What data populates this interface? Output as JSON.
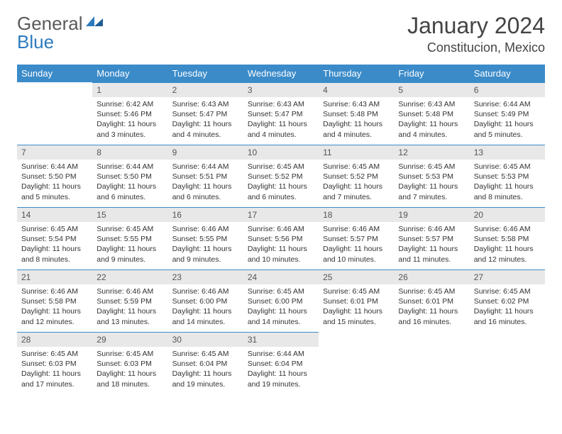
{
  "brand": {
    "g": "General",
    "b": "Blue"
  },
  "title": "January 2024",
  "location": "Constitucion, Mexico",
  "colors": {
    "header_bg": "#3b8bc9",
    "daynum_bg": "#e8e8e8",
    "rule": "#3b8bc9",
    "brand_gray": "#5a5a5a",
    "brand_blue": "#2d7bbf"
  },
  "day_headers": [
    "Sunday",
    "Monday",
    "Tuesday",
    "Wednesday",
    "Thursday",
    "Friday",
    "Saturday"
  ],
  "weeks": [
    [
      null,
      {
        "n": "1",
        "sr": "Sunrise: 6:42 AM",
        "ss": "Sunset: 5:46 PM",
        "d1": "Daylight: 11 hours",
        "d2": "and 3 minutes."
      },
      {
        "n": "2",
        "sr": "Sunrise: 6:43 AM",
        "ss": "Sunset: 5:47 PM",
        "d1": "Daylight: 11 hours",
        "d2": "and 4 minutes."
      },
      {
        "n": "3",
        "sr": "Sunrise: 6:43 AM",
        "ss": "Sunset: 5:47 PM",
        "d1": "Daylight: 11 hours",
        "d2": "and 4 minutes."
      },
      {
        "n": "4",
        "sr": "Sunrise: 6:43 AM",
        "ss": "Sunset: 5:48 PM",
        "d1": "Daylight: 11 hours",
        "d2": "and 4 minutes."
      },
      {
        "n": "5",
        "sr": "Sunrise: 6:43 AM",
        "ss": "Sunset: 5:48 PM",
        "d1": "Daylight: 11 hours",
        "d2": "and 4 minutes."
      },
      {
        "n": "6",
        "sr": "Sunrise: 6:44 AM",
        "ss": "Sunset: 5:49 PM",
        "d1": "Daylight: 11 hours",
        "d2": "and 5 minutes."
      }
    ],
    [
      {
        "n": "7",
        "sr": "Sunrise: 6:44 AM",
        "ss": "Sunset: 5:50 PM",
        "d1": "Daylight: 11 hours",
        "d2": "and 5 minutes."
      },
      {
        "n": "8",
        "sr": "Sunrise: 6:44 AM",
        "ss": "Sunset: 5:50 PM",
        "d1": "Daylight: 11 hours",
        "d2": "and 6 minutes."
      },
      {
        "n": "9",
        "sr": "Sunrise: 6:44 AM",
        "ss": "Sunset: 5:51 PM",
        "d1": "Daylight: 11 hours",
        "d2": "and 6 minutes."
      },
      {
        "n": "10",
        "sr": "Sunrise: 6:45 AM",
        "ss": "Sunset: 5:52 PM",
        "d1": "Daylight: 11 hours",
        "d2": "and 6 minutes."
      },
      {
        "n": "11",
        "sr": "Sunrise: 6:45 AM",
        "ss": "Sunset: 5:52 PM",
        "d1": "Daylight: 11 hours",
        "d2": "and 7 minutes."
      },
      {
        "n": "12",
        "sr": "Sunrise: 6:45 AM",
        "ss": "Sunset: 5:53 PM",
        "d1": "Daylight: 11 hours",
        "d2": "and 7 minutes."
      },
      {
        "n": "13",
        "sr": "Sunrise: 6:45 AM",
        "ss": "Sunset: 5:53 PM",
        "d1": "Daylight: 11 hours",
        "d2": "and 8 minutes."
      }
    ],
    [
      {
        "n": "14",
        "sr": "Sunrise: 6:45 AM",
        "ss": "Sunset: 5:54 PM",
        "d1": "Daylight: 11 hours",
        "d2": "and 8 minutes."
      },
      {
        "n": "15",
        "sr": "Sunrise: 6:45 AM",
        "ss": "Sunset: 5:55 PM",
        "d1": "Daylight: 11 hours",
        "d2": "and 9 minutes."
      },
      {
        "n": "16",
        "sr": "Sunrise: 6:46 AM",
        "ss": "Sunset: 5:55 PM",
        "d1": "Daylight: 11 hours",
        "d2": "and 9 minutes."
      },
      {
        "n": "17",
        "sr": "Sunrise: 6:46 AM",
        "ss": "Sunset: 5:56 PM",
        "d1": "Daylight: 11 hours",
        "d2": "and 10 minutes."
      },
      {
        "n": "18",
        "sr": "Sunrise: 6:46 AM",
        "ss": "Sunset: 5:57 PM",
        "d1": "Daylight: 11 hours",
        "d2": "and 10 minutes."
      },
      {
        "n": "19",
        "sr": "Sunrise: 6:46 AM",
        "ss": "Sunset: 5:57 PM",
        "d1": "Daylight: 11 hours",
        "d2": "and 11 minutes."
      },
      {
        "n": "20",
        "sr": "Sunrise: 6:46 AM",
        "ss": "Sunset: 5:58 PM",
        "d1": "Daylight: 11 hours",
        "d2": "and 12 minutes."
      }
    ],
    [
      {
        "n": "21",
        "sr": "Sunrise: 6:46 AM",
        "ss": "Sunset: 5:58 PM",
        "d1": "Daylight: 11 hours",
        "d2": "and 12 minutes."
      },
      {
        "n": "22",
        "sr": "Sunrise: 6:46 AM",
        "ss": "Sunset: 5:59 PM",
        "d1": "Daylight: 11 hours",
        "d2": "and 13 minutes."
      },
      {
        "n": "23",
        "sr": "Sunrise: 6:46 AM",
        "ss": "Sunset: 6:00 PM",
        "d1": "Daylight: 11 hours",
        "d2": "and 14 minutes."
      },
      {
        "n": "24",
        "sr": "Sunrise: 6:45 AM",
        "ss": "Sunset: 6:00 PM",
        "d1": "Daylight: 11 hours",
        "d2": "and 14 minutes."
      },
      {
        "n": "25",
        "sr": "Sunrise: 6:45 AM",
        "ss": "Sunset: 6:01 PM",
        "d1": "Daylight: 11 hours",
        "d2": "and 15 minutes."
      },
      {
        "n": "26",
        "sr": "Sunrise: 6:45 AM",
        "ss": "Sunset: 6:01 PM",
        "d1": "Daylight: 11 hours",
        "d2": "and 16 minutes."
      },
      {
        "n": "27",
        "sr": "Sunrise: 6:45 AM",
        "ss": "Sunset: 6:02 PM",
        "d1": "Daylight: 11 hours",
        "d2": "and 16 minutes."
      }
    ],
    [
      {
        "n": "28",
        "sr": "Sunrise: 6:45 AM",
        "ss": "Sunset: 6:03 PM",
        "d1": "Daylight: 11 hours",
        "d2": "and 17 minutes."
      },
      {
        "n": "29",
        "sr": "Sunrise: 6:45 AM",
        "ss": "Sunset: 6:03 PM",
        "d1": "Daylight: 11 hours",
        "d2": "and 18 minutes."
      },
      {
        "n": "30",
        "sr": "Sunrise: 6:45 AM",
        "ss": "Sunset: 6:04 PM",
        "d1": "Daylight: 11 hours",
        "d2": "and 19 minutes."
      },
      {
        "n": "31",
        "sr": "Sunrise: 6:44 AM",
        "ss": "Sunset: 6:04 PM",
        "d1": "Daylight: 11 hours",
        "d2": "and 19 minutes."
      },
      null,
      null,
      null
    ]
  ]
}
